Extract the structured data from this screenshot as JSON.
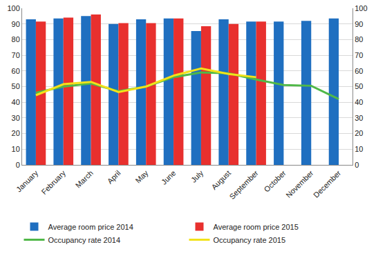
{
  "chart_data": {
    "type": "bar",
    "categories": [
      "January",
      "February",
      "March",
      "April",
      "May",
      "June",
      "July",
      "August",
      "September",
      "October",
      "November",
      "December"
    ],
    "series": [
      {
        "name": "Average room price 2014",
        "type": "bar",
        "color": "#1f6fc0",
        "values": [
          93,
          93.5,
          95,
          90,
          93,
          93.5,
          85.5,
          93,
          91.5,
          91.5,
          92,
          93.5
        ]
      },
      {
        "name": "Average room price 2015",
        "type": "bar",
        "color": "#e8302e",
        "values": [
          91.5,
          94,
          96,
          90.5,
          90.5,
          93.5,
          88.5,
          90,
          91.5,
          null,
          null,
          null
        ]
      },
      {
        "name": "Occupancy rate 2014",
        "type": "line",
        "axis": "y2",
        "color": "#50b848",
        "values": [
          46,
          50,
          52,
          47,
          50,
          56,
          59,
          58.5,
          54.5,
          51,
          50.5,
          42
        ]
      },
      {
        "name": "Occupancy rate 2015",
        "type": "line",
        "axis": "y2",
        "color": "#f2e21a",
        "values": [
          44.5,
          51.5,
          53,
          46.5,
          50,
          57,
          61.5,
          58,
          56,
          null,
          null,
          null
        ]
      }
    ],
    "ylim": [
      0,
      100
    ],
    "yticks": [
      0,
      10,
      20,
      30,
      40,
      50,
      60,
      70,
      80,
      90,
      100
    ],
    "y2lim": [
      0,
      100
    ],
    "y2ticks": [
      0,
      10,
      20,
      30,
      40,
      50,
      60,
      70,
      80,
      90,
      100
    ],
    "grid": true,
    "legend": "bottom"
  }
}
